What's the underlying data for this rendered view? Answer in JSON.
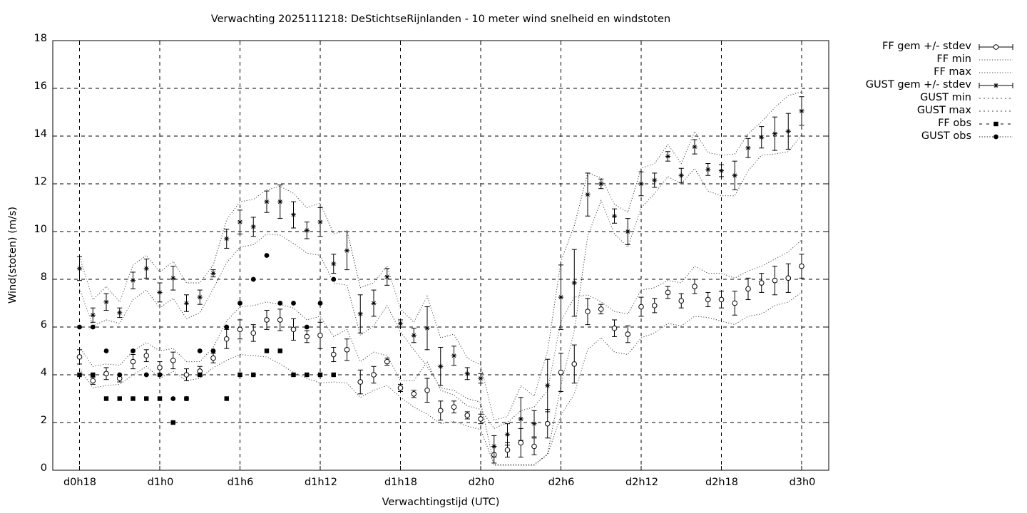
{
  "chart_data": {
    "type": "line",
    "title": "Verwachting 2025111218: DeStichtseRijnlanden - 10 meter wind snelheid en windstoten",
    "xlabel": "Verwachtingstijd (UTC)",
    "ylabel": "Wind(stoten) (m/s)",
    "xlim": [
      0,
      57
    ],
    "ylim": [
      0,
      18
    ],
    "grid": true,
    "legend_position": "top-right, outside plot",
    "x_tick_labels": [
      "d0h18",
      "d1h0",
      "d1h6",
      "d1h12",
      "d1h18",
      "d2h0",
      "d2h6",
      "d2h12",
      "d2h18",
      "d3h0"
    ],
    "y_tick_labels": [
      "0",
      "2",
      "4",
      "6",
      "8",
      "10",
      "12",
      "14",
      "16",
      "18"
    ],
    "legend": [
      "FF gem +/- stdev",
      "FF min",
      "FF max",
      "GUST gem +/- stdev",
      "GUST min",
      "GUST max",
      "FF obs",
      "GUST obs"
    ],
    "x_hours_since_d0h18": [
      0,
      1,
      2,
      3,
      4,
      5,
      6,
      7,
      8,
      9,
      10,
      11,
      12,
      13,
      14,
      15,
      16,
      17,
      18,
      19,
      20,
      21,
      22,
      23,
      24,
      25,
      26,
      27,
      28,
      29,
      30,
      31,
      32,
      33,
      34,
      35,
      36,
      37,
      38,
      39,
      40,
      41,
      42,
      43,
      44,
      45,
      46,
      47,
      48,
      49,
      50,
      51,
      52,
      53,
      54
    ],
    "series": [
      {
        "name": "FF gem +/- stdev",
        "values": [
          4.75,
          3.75,
          4.05,
          3.85,
          4.55,
          4.8,
          4.3,
          4.6,
          4.0,
          4.15,
          4.7,
          5.5,
          5.9,
          5.75,
          6.3,
          6.3,
          5.9,
          5.6,
          5.65,
          4.85,
          5.05,
          3.7,
          4.0,
          4.55,
          3.45,
          3.2,
          3.35,
          2.5,
          2.65,
          2.3,
          2.15,
          0.65,
          0.85,
          1.15,
          1.0,
          1.95,
          4.1,
          4.45,
          6.65,
          6.75,
          5.95,
          5.7,
          6.85,
          6.9,
          7.45,
          7.1,
          7.7,
          7.15,
          7.15,
          7.0,
          7.6,
          7.85,
          7.95,
          8.05,
          8.55
        ],
        "stdev": [
          0.3,
          0.15,
          0.25,
          0.15,
          0.3,
          0.25,
          0.25,
          0.35,
          0.25,
          0.2,
          0.2,
          0.4,
          0.4,
          0.35,
          0.4,
          0.45,
          0.45,
          0.25,
          0.55,
          0.3,
          0.45,
          0.5,
          0.35,
          0.15,
          0.15,
          0.15,
          0.5,
          0.4,
          0.25,
          0.15,
          0.2,
          0.35,
          0.3,
          0.6,
          0.35,
          0.6,
          0.8,
          0.8,
          0.55,
          0.2,
          0.35,
          0.35,
          0.4,
          0.3,
          0.25,
          0.3,
          0.3,
          0.3,
          0.35,
          0.5,
          0.45,
          0.4,
          0.6,
          0.6,
          0.5
        ]
      },
      {
        "name": "FF min",
        "values": [
          4.25,
          3.45,
          3.55,
          3.6,
          4.0,
          4.35,
          3.85,
          4.15,
          3.75,
          3.85,
          4.3,
          4.6,
          4.85,
          4.8,
          4.75,
          4.45,
          4.1,
          3.85,
          3.65,
          3.7,
          3.65,
          3.05,
          3.35,
          3.55,
          3.05,
          2.65,
          2.35,
          1.95,
          2.05,
          1.85,
          1.7,
          0.25,
          0.25,
          0.25,
          0.25,
          0.65,
          2.3,
          3.2,
          5.05,
          5.55,
          4.95,
          4.85,
          5.55,
          5.75,
          6.15,
          6.05,
          6.45,
          6.4,
          6.25,
          6.1,
          6.45,
          6.55,
          6.9,
          7.05,
          7.45
        ]
      },
      {
        "name": "FF max",
        "values": [
          5.15,
          4.35,
          4.45,
          4.4,
          5.0,
          5.35,
          5.0,
          5.1,
          4.55,
          4.55,
          5.15,
          6.25,
          6.85,
          6.9,
          7.05,
          6.95,
          6.8,
          6.3,
          6.45,
          5.6,
          5.9,
          4.55,
          4.95,
          4.8,
          3.75,
          3.75,
          4.55,
          3.35,
          3.15,
          2.7,
          2.55,
          1.75,
          2.0,
          2.5,
          2.65,
          3.35,
          6.25,
          7.25,
          7.35,
          7.05,
          6.65,
          6.55,
          7.55,
          7.65,
          7.95,
          7.85,
          8.55,
          8.25,
          8.25,
          8.05,
          8.35,
          8.55,
          8.85,
          9.15,
          9.65
        ]
      },
      {
        "name": "GUST gem +/- stdev",
        "values": [
          8.45,
          6.5,
          7.05,
          6.6,
          7.95,
          8.45,
          7.45,
          8.05,
          7.0,
          7.25,
          8.25,
          9.7,
          10.4,
          10.2,
          11.25,
          11.25,
          10.7,
          10.05,
          10.4,
          8.65,
          9.2,
          6.55,
          7.0,
          8.1,
          6.15,
          5.65,
          5.95,
          4.35,
          4.8,
          4.05,
          3.85,
          1.0,
          1.5,
          2.15,
          1.95,
          3.55,
          7.25,
          7.85,
          11.55,
          12.0,
          10.65,
          10.0,
          12.0,
          12.15,
          13.15,
          12.35,
          13.55,
          12.6,
          12.55,
          12.35,
          13.5,
          13.95,
          14.1,
          14.2,
          15.05
        ],
        "stdev": [
          0.5,
          0.3,
          0.35,
          0.2,
          0.35,
          0.4,
          0.4,
          0.5,
          0.35,
          0.3,
          0.15,
          0.4,
          0.5,
          0.4,
          0.45,
          0.7,
          0.55,
          0.35,
          0.6,
          0.4,
          0.8,
          0.8,
          0.55,
          0.35,
          0.15,
          0.3,
          0.9,
          0.8,
          0.4,
          0.25,
          0.2,
          0.45,
          0.45,
          0.9,
          0.55,
          1.1,
          1.35,
          1.4,
          0.9,
          0.2,
          0.3,
          0.55,
          0.5,
          0.3,
          0.2,
          0.3,
          0.3,
          0.25,
          0.25,
          0.6,
          0.4,
          0.45,
          0.7,
          0.75,
          0.6
        ]
      },
      {
        "name": "GUST min",
        "values": [
          7.6,
          6.05,
          6.3,
          6.15,
          7.15,
          7.55,
          6.8,
          7.2,
          6.35,
          6.6,
          7.6,
          8.7,
          9.35,
          9.45,
          9.9,
          9.85,
          9.5,
          9.1,
          9.0,
          7.85,
          7.75,
          5.65,
          6.05,
          6.9,
          5.8,
          5.05,
          4.35,
          3.45,
          3.35,
          3.0,
          2.85,
          0.2,
          0.2,
          0.2,
          0.2,
          0.7,
          3.55,
          5.85,
          9.8,
          11.3,
          9.9,
          9.35,
          11.0,
          11.6,
          12.3,
          12.0,
          12.65,
          11.7,
          11.5,
          11.5,
          12.55,
          13.2,
          13.25,
          13.35,
          14.05
        ]
      },
      {
        "name": "GUST max",
        "values": [
          8.95,
          7.15,
          7.7,
          7.05,
          8.6,
          9.0,
          8.3,
          8.75,
          7.85,
          7.85,
          8.6,
          10.5,
          11.25,
          11.35,
          11.75,
          11.9,
          11.6,
          11.0,
          11.2,
          9.9,
          10.05,
          7.65,
          7.85,
          8.55,
          6.75,
          6.2,
          7.3,
          5.55,
          5.7,
          4.7,
          4.4,
          2.1,
          2.25,
          3.55,
          3.1,
          5.0,
          8.75,
          10.25,
          12.45,
          12.25,
          11.15,
          10.8,
          12.65,
          12.85,
          13.65,
          12.85,
          14.2,
          13.3,
          13.2,
          13.25,
          14.1,
          14.6,
          15.2,
          15.7,
          15.85
        ]
      },
      {
        "name": "FF obs",
        "x": [
          0,
          1,
          2,
          3,
          4,
          5,
          6,
          7,
          8,
          9,
          11,
          12,
          13,
          14,
          15,
          16,
          17,
          18,
          19
        ],
        "values": [
          4,
          4,
          3,
          3,
          3,
          3,
          3,
          2,
          3,
          4,
          3,
          4,
          4,
          5,
          5,
          4,
          4,
          4,
          4
        ]
      },
      {
        "name": "GUST obs",
        "x": [
          0,
          1,
          2,
          3,
          4,
          5,
          6,
          7,
          8,
          9,
          10,
          11,
          12,
          13,
          14,
          15,
          16,
          17,
          18,
          19
        ],
        "values": [
          6,
          6,
          5,
          4,
          5,
          4,
          4,
          3,
          3,
          5,
          5,
          6,
          7,
          8,
          9,
          7,
          7,
          6,
          7,
          8
        ]
      }
    ]
  }
}
